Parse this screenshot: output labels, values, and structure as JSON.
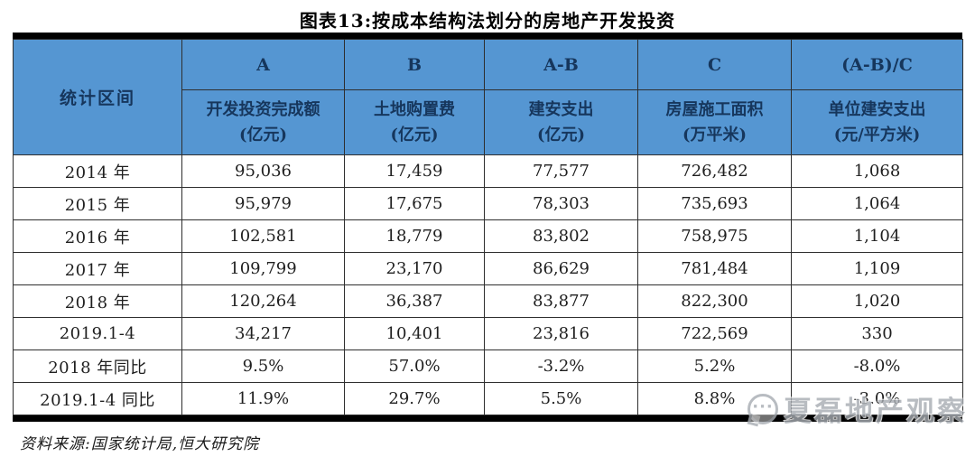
{
  "chart_data": {
    "type": "table",
    "title": "图表13:按成本结构法划分的房地产开发投资",
    "corner_header": "统计区间",
    "formula_row": [
      "A",
      "B",
      "A-B",
      "C",
      "(A-B)/C"
    ],
    "metric_row": [
      {
        "name": "开发投资完成额",
        "unit": "(亿元)"
      },
      {
        "name": "土地购置费",
        "unit": "(亿元)"
      },
      {
        "name": "建安支出",
        "unit": "(亿元)"
      },
      {
        "name": "房屋施工面积",
        "unit": "(万平米)"
      },
      {
        "name": "单位建安支出",
        "unit": "(元/平方米)"
      }
    ],
    "rows": [
      {
        "label": "2014 年",
        "values": [
          "95,036",
          "17,459",
          "77,577",
          "726,482",
          "1,068"
        ]
      },
      {
        "label": "2015 年",
        "values": [
          "95,979",
          "17,675",
          "78,303",
          "735,693",
          "1,064"
        ]
      },
      {
        "label": "2016 年",
        "values": [
          "102,581",
          "18,779",
          "83,802",
          "758,975",
          "1,104"
        ]
      },
      {
        "label": "2017 年",
        "values": [
          "109,799",
          "23,170",
          "86,629",
          "781,484",
          "1,109"
        ]
      },
      {
        "label": "2018 年",
        "values": [
          "120,264",
          "36,387",
          "83,877",
          "822,300",
          "1,020"
        ]
      },
      {
        "label": "2019.1-4",
        "values": [
          "34,217",
          "10,401",
          "23,816",
          "722,569",
          "330"
        ]
      },
      {
        "label": "2018 年同比",
        "values": [
          "9.5%",
          "57.0%",
          "-3.2%",
          "5.2%",
          "-8.0%"
        ]
      },
      {
        "label": "2019.1-4 同比",
        "values": [
          "11.9%",
          "29.7%",
          "5.5%",
          "8.8%",
          "-3.0%"
        ]
      }
    ],
    "source_note": "资料来源:国家统计局,恒大研究院",
    "layout_hints": {
      "grid": true,
      "thick_top_bottom_rules": true,
      "header_rows": 2
    }
  },
  "watermark": {
    "text": "夏磊地产观察",
    "icon": "chat-bubble-face-logo"
  },
  "colors": {
    "header_bg": "#5596d2",
    "header_text": "#16365c",
    "grid_line": "#2e2e2e",
    "thick_rule": "#000000",
    "body_text": "#1f1f1f",
    "watermark_color": "#a7acb2"
  }
}
